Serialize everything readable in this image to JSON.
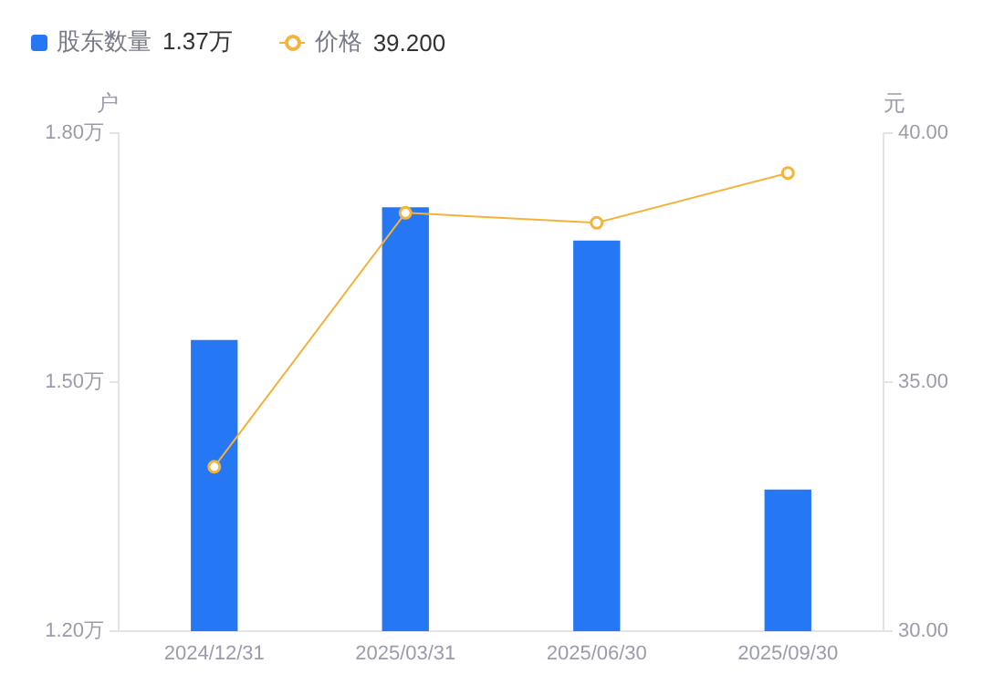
{
  "chart_data": {
    "type": "bar",
    "ylabel": "户",
    "y2label": "元",
    "categories": [
      "2024/12/31",
      "2025/03/31",
      "2025/06/30",
      "2025/09/30"
    ],
    "series": [
      {
        "name": "股东数量 1.37万",
        "color": "#2677f3",
        "values": [
          1.55,
          1.71,
          1.67,
          1.37
        ]
      },
      {
        "name": "价格 39.200",
        "type": "line",
        "axis": "y2",
        "color": "#f5b33c",
        "values": [
          33.3,
          38.4,
          38.2,
          39.2
        ]
      }
    ],
    "ylim": [
      1.2,
      1.8
    ],
    "yticks": [
      {
        "value": 1.2,
        "label": "1.20万"
      },
      {
        "value": 1.5,
        "label": "1.50万"
      },
      {
        "value": 1.8,
        "label": "1.80万"
      }
    ],
    "y2lim": [
      30,
      40
    ],
    "y2ticks": [
      {
        "value": 30,
        "label": "30.00"
      },
      {
        "value": 35,
        "label": "35.00"
      },
      {
        "value": 40,
        "label": "40.00"
      }
    ],
    "grid": false,
    "legend": "top left",
    "marker": "circle"
  }
}
